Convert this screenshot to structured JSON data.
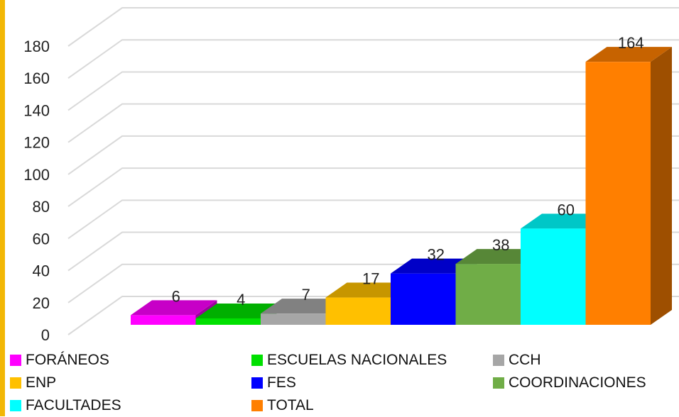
{
  "chart_data": {
    "type": "bar",
    "categories": [
      "FORÁNEOS",
      "ESCUELAS NACIONALES",
      "CCH",
      "ENP",
      "FES",
      "COORDINACIONES",
      "FACULTADES",
      "TOTAL"
    ],
    "values": [
      6,
      4,
      7,
      17,
      32,
      38,
      60,
      164
    ],
    "colors": [
      "#ff00ff",
      "#00e000",
      "#a6a6a6",
      "#ffc000",
      "#0000ff",
      "#70ad47",
      "#00ffff",
      "#ff7f00"
    ],
    "title": "",
    "xlabel": "",
    "ylabel": "",
    "ylim": [
      0,
      180
    ],
    "yticks": [
      "0",
      "20",
      "40",
      "60",
      "80",
      "100",
      "120",
      "140",
      "160",
      "180"
    ],
    "grid": true,
    "legend_position": "bottom",
    "style": "3d-column"
  },
  "legend": {
    "items": [
      {
        "label": "FORÁNEOS",
        "color": "#ff00ff"
      },
      {
        "label": "ESCUELAS NACIONALES",
        "color": "#00e000"
      },
      {
        "label": "CCH",
        "color": "#a6a6a6"
      },
      {
        "label": "ENP",
        "color": "#ffc000"
      },
      {
        "label": "FES",
        "color": "#0000ff"
      },
      {
        "label": "COORDINACIONES",
        "color": "#70ad47"
      },
      {
        "label": "FACULTADES",
        "color": "#00ffff"
      },
      {
        "label": "TOTAL",
        "color": "#ff7f00"
      }
    ]
  }
}
